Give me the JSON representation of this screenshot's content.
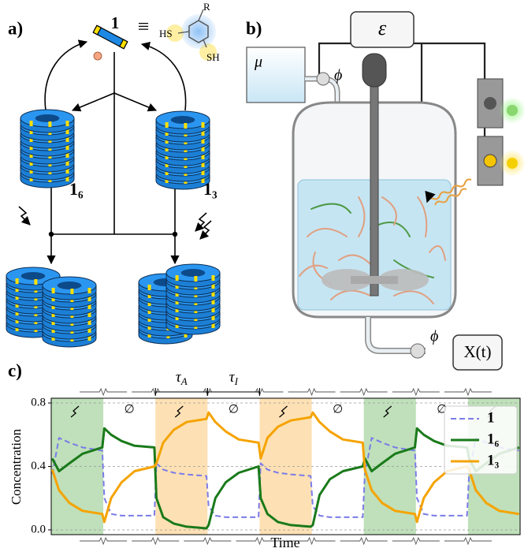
{
  "panels": {
    "a": {
      "label": "a)",
      "monomer": "1",
      "equiv": "≡",
      "substituents": [
        "HS",
        "R",
        "SH"
      ],
      "stack_left": "1₆",
      "stack_right": "1₃"
    },
    "b": {
      "label": "b)",
      "energy": "ε",
      "feed": "μ",
      "flow_in": "ϕ",
      "flow_out": "ϕ",
      "output": "X(t)"
    },
    "c": {
      "label": "c)"
    }
  },
  "chart_data": {
    "type": "line",
    "ylabel": "Concentration",
    "xlabel": "Time",
    "xlim": [
      0,
      9
    ],
    "ylim": [
      -0.03,
      0.83
    ],
    "yticks": [
      {
        "value": 0,
        "label": "0.0"
      },
      0.4,
      0.8
    ],
    "grid": true,
    "legend": "upper right",
    "annotations": [
      {
        "symbol": "τ",
        "sub": "A"
      },
      {
        "symbol": "τ",
        "sub": "I"
      }
    ],
    "phases": [
      {
        "start": 0,
        "end": 1,
        "color": "#bfe0ba"
      },
      {
        "start": 1,
        "end": 2,
        "label": "∅"
      },
      {
        "start": 2,
        "end": 3,
        "color": "#fde1b4"
      },
      {
        "start": 3,
        "end": 4,
        "label": "∅"
      },
      {
        "start": 4,
        "end": 5,
        "color": "#fde1b4"
      },
      {
        "start": 5,
        "end": 6,
        "label": "∅"
      },
      {
        "start": 6,
        "end": 7,
        "color": "#bfe0ba"
      },
      {
        "start": 7,
        "end": 8,
        "label": "∅"
      },
      {
        "start": 8,
        "end": 9,
        "color": "#bfe0ba"
      }
    ],
    "x": [
      0.02,
      0.15,
      0.35,
      0.6,
      0.98,
      1.02,
      1.15,
      1.35,
      1.6,
      1.98,
      2.02,
      2.15,
      2.35,
      2.6,
      2.98,
      3.02,
      3.15,
      3.35,
      3.6,
      3.98,
      4.02,
      4.15,
      4.35,
      4.6,
      4.98,
      5.02,
      5.15,
      5.35,
      5.6,
      5.98,
      6.02,
      6.15,
      6.35,
      6.6,
      6.98,
      7.02,
      7.15,
      7.35,
      7.6,
      7.98,
      8.02,
      8.15,
      8.35,
      8.6,
      8.98
    ],
    "series": [
      {
        "name": "1",
        "color": "#7b7be8",
        "dashed": true,
        "values": [
          0.35,
          0.58,
          0.55,
          0.52,
          0.5,
          0.2,
          0.1,
          0.09,
          0.09,
          0.09,
          0.42,
          0.38,
          0.36,
          0.35,
          0.34,
          0.15,
          0.09,
          0.08,
          0.08,
          0.08,
          0.42,
          0.38,
          0.36,
          0.35,
          0.34,
          0.15,
          0.09,
          0.08,
          0.08,
          0.08,
          0.35,
          0.58,
          0.55,
          0.52,
          0.5,
          0.2,
          0.1,
          0.09,
          0.09,
          0.09,
          0.35,
          0.58,
          0.55,
          0.52,
          0.5
        ]
      },
      {
        "name": "1₆",
        "color": "#1a7a1a",
        "values": [
          0.45,
          0.37,
          0.42,
          0.48,
          0.52,
          0.64,
          0.6,
          0.56,
          0.53,
          0.52,
          0.2,
          0.08,
          0.04,
          0.02,
          0.01,
          0.03,
          0.2,
          0.3,
          0.36,
          0.4,
          0.2,
          0.1,
          0.05,
          0.03,
          0.02,
          0.03,
          0.22,
          0.32,
          0.37,
          0.4,
          0.45,
          0.37,
          0.42,
          0.48,
          0.52,
          0.64,
          0.6,
          0.56,
          0.53,
          0.52,
          0.45,
          0.37,
          0.42,
          0.48,
          0.52
        ]
      },
      {
        "name": "1₃",
        "color": "#f5a300",
        "values": [
          0.38,
          0.25,
          0.17,
          0.12,
          0.1,
          0.05,
          0.2,
          0.3,
          0.37,
          0.4,
          0.42,
          0.55,
          0.63,
          0.68,
          0.7,
          0.74,
          0.68,
          0.62,
          0.57,
          0.55,
          0.45,
          0.58,
          0.65,
          0.69,
          0.71,
          0.74,
          0.68,
          0.62,
          0.57,
          0.55,
          0.38,
          0.25,
          0.17,
          0.12,
          0.1,
          0.05,
          0.2,
          0.3,
          0.37,
          0.4,
          0.38,
          0.25,
          0.17,
          0.12,
          0.1
        ]
      }
    ]
  }
}
